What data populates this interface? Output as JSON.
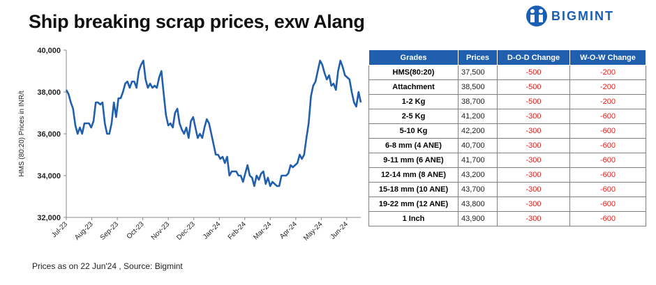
{
  "title": "Ship breaking scrap prices, exw Alang",
  "brand": {
    "name": "BIGMINT",
    "color": "#1a5fb4"
  },
  "footnote": "Prices as on 22 Jun'24 , Source:  Bigmint",
  "colors": {
    "line": "#1f5fad",
    "header": "#1f5fad",
    "negative": "#e0201b"
  },
  "table": {
    "headers": [
      "Grades",
      "Prices",
      "D-O-D Change",
      "W-O-W Change"
    ],
    "rows": [
      {
        "grade": "HMS(80:20)",
        "price": "37,500",
        "dod": "-500",
        "wow": "-200"
      },
      {
        "grade": "Attachment",
        "price": "38,500",
        "dod": "-500",
        "wow": "-200"
      },
      {
        "grade": "1-2 Kg",
        "price": "38,700",
        "dod": "-500",
        "wow": "-200"
      },
      {
        "grade": "2-5 Kg",
        "price": "41,200",
        "dod": "-300",
        "wow": "-600"
      },
      {
        "grade": "5-10 Kg",
        "price": "42,200",
        "dod": "-300",
        "wow": "-600"
      },
      {
        "grade": "6-8 mm (4 ANE)",
        "price": "40,700",
        "dod": "-300",
        "wow": "-600"
      },
      {
        "grade": "9-11 mm (6 ANE)",
        "price": "41,700",
        "dod": "-300",
        "wow": "-600"
      },
      {
        "grade": "12-14 mm (8 ANE)",
        "price": "43,200",
        "dod": "-300",
        "wow": "-600"
      },
      {
        "grade": "15-18 mm (10 ANE)",
        "price": "43,700",
        "dod": "-300",
        "wow": "-600"
      },
      {
        "grade": "19-22 mm (12 ANE)",
        "price": "43,800",
        "dod": "-300",
        "wow": "-600"
      },
      {
        "grade": "1 Inch",
        "price": "43,900",
        "dod": "-300",
        "wow": "-600"
      }
    ]
  },
  "chart_data": {
    "type": "line",
    "ylabel": "HMS (80:20) Prices in INR/t",
    "xlabel": "",
    "ylim": [
      32000,
      40000
    ],
    "yticks": [
      32000,
      34000,
      36000,
      38000,
      40000
    ],
    "ytick_labels": [
      "32,000",
      "34,000",
      "36,000",
      "38,000",
      "40,000"
    ],
    "xticks": [
      "Jul-23",
      "Aug-23",
      "Sep-23",
      "Oct-23",
      "Nov-23",
      "Dec-23",
      "Jan-24",
      "Feb-24",
      "Mar-24",
      "Apr-24",
      "May-24",
      "Jun-24"
    ],
    "grid": false,
    "series": [
      {
        "values": [
          38100,
          37900,
          37500,
          37200,
          36400,
          36000,
          36300,
          36000,
          36500,
          36500,
          36500,
          36300,
          36600,
          37500,
          37500,
          37400,
          37500,
          36500,
          36000,
          36000,
          36500,
          37500,
          36800,
          37700,
          37700,
          38000,
          38400,
          38500,
          38200,
          38500,
          38500,
          38200,
          39000,
          39300,
          39500,
          38600,
          38200,
          38400,
          38200,
          38300,
          38200,
          38700,
          39000,
          37900,
          36900,
          36400,
          36500,
          36300,
          37000,
          37200,
          36500,
          36200,
          36000,
          36300,
          35800,
          36600,
          36800,
          36300,
          35800,
          36000,
          35800,
          36300,
          36700,
          36500,
          36000,
          35500,
          35000,
          35000,
          34800,
          34900,
          34600,
          34900,
          34000,
          34200,
          34200,
          34200,
          34000,
          34000,
          33700,
          34100,
          34500,
          34000,
          33900,
          33500,
          34000,
          33800,
          34100,
          34200,
          33600,
          33900,
          33500,
          33700,
          33600,
          33500,
          33500,
          34000,
          34000,
          34000,
          34100,
          34500,
          34400,
          34500,
          34600,
          35000,
          34800,
          35000,
          35800,
          36500,
          37800,
          38300,
          38500,
          39000,
          39500,
          39300,
          38900,
          38600,
          38800,
          38300,
          38400,
          38100,
          39000,
          39500,
          39200,
          38800,
          38700,
          38600,
          38000,
          37500,
          37300,
          38000,
          37500
        ]
      }
    ]
  }
}
